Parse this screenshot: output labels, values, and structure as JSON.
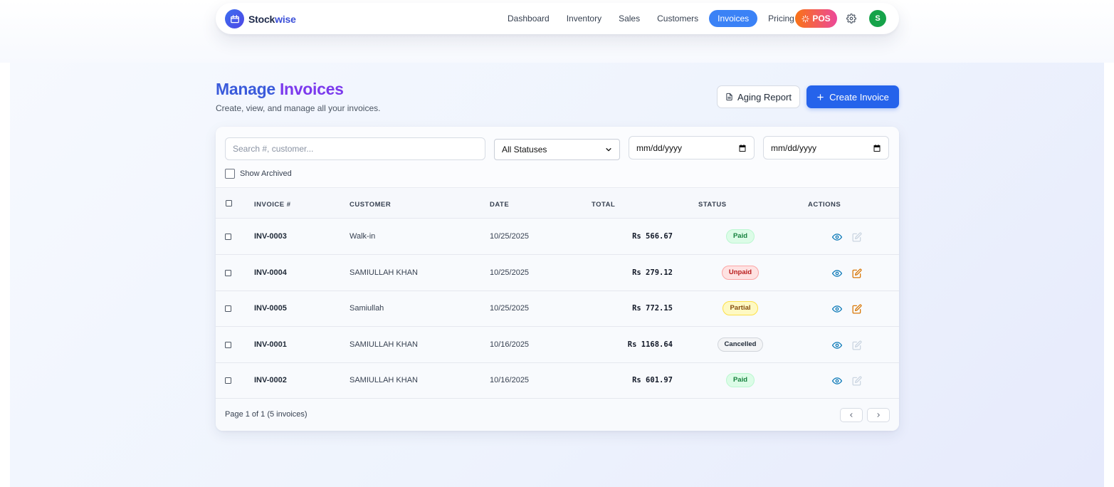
{
  "app": {
    "brand_prefix": "Stock",
    "brand_suffix": "wise"
  },
  "nav": {
    "links": [
      {
        "label": "Dashboard",
        "active": false
      },
      {
        "label": "Inventory",
        "active": false
      },
      {
        "label": "Sales",
        "active": false
      },
      {
        "label": "Customers",
        "active": false
      },
      {
        "label": "Invoices",
        "active": true
      },
      {
        "label": "Pricing",
        "active": false
      }
    ],
    "pos_label": "POS",
    "avatar_initial": "S"
  },
  "header": {
    "title_part1": "Manage",
    "title_part2": "Invoices",
    "subtitle": "Create, view, and manage all your invoices.",
    "aging_label": "Aging Report",
    "create_label": "Create Invoice"
  },
  "filters": {
    "search_placeholder": "Search #, customer...",
    "status_value": "All Statuses",
    "date_from_placeholder": "mm/dd/yyyy",
    "date_to_placeholder": "mm/dd/yyyy",
    "archived_label": "Show Archived"
  },
  "table": {
    "columns": [
      "INVOICE #",
      "CUSTOMER",
      "DATE",
      "TOTAL",
      "STATUS",
      "ACTIONS"
    ],
    "rows": [
      {
        "invoice": "INV-0003",
        "customer": "Walk-in",
        "date": "10/25/2025",
        "total": "Rs 566.67",
        "status": "Paid",
        "editable": false
      },
      {
        "invoice": "INV-0004",
        "customer": "SAMIULLAH KHAN",
        "date": "10/25/2025",
        "total": "Rs 279.12",
        "status": "Unpaid",
        "editable": true
      },
      {
        "invoice": "INV-0005",
        "customer": "Samiullah",
        "date": "10/25/2025",
        "total": "Rs 772.15",
        "status": "Partial",
        "editable": true
      },
      {
        "invoice": "INV-0001",
        "customer": "SAMIULLAH KHAN",
        "date": "10/16/2025",
        "total": "Rs 1168.64",
        "status": "Cancelled",
        "editable": false
      },
      {
        "invoice": "INV-0002",
        "customer": "SAMIULLAH KHAN",
        "date": "10/16/2025",
        "total": "Rs 601.97",
        "status": "Paid",
        "editable": false
      }
    ]
  },
  "pagination": {
    "info": "Page 1 of 1 (5 invoices)"
  },
  "colors": {
    "accent": "#3b82f6",
    "primary_button": "#2563eb",
    "paid_bg": "#dcfce7",
    "paid_text": "#15803d",
    "paid_border": "#bbf7d0",
    "unpaid_bg": "#fee2e2",
    "unpaid_text": "#b91c1c",
    "unpaid_border": "#fca5a5",
    "partial_bg": "#fef9c3",
    "partial_text": "#854d0e",
    "partial_border": "#fde047",
    "cancelled_bg": "#f3f4f6",
    "cancelled_text": "#1f2937",
    "cancelled_border": "#d1d5db"
  }
}
